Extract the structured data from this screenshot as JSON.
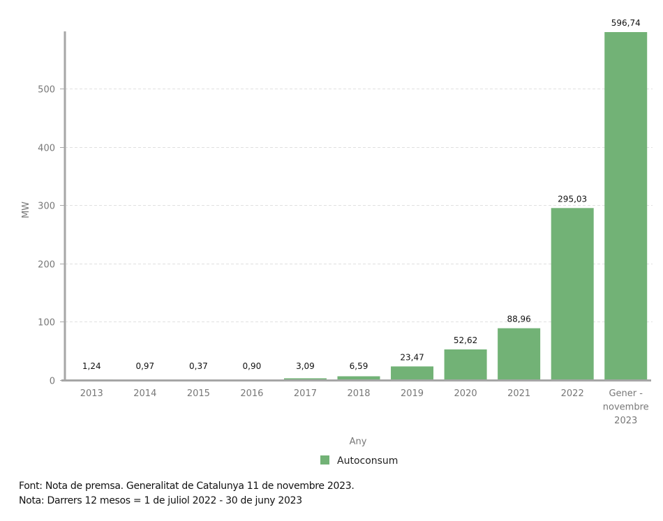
{
  "chart_data": {
    "type": "bar",
    "title": "",
    "xlabel": "Any",
    "ylabel": "MW",
    "ylim": [
      0,
      596.74
    ],
    "yticks": [
      0,
      100,
      200,
      300,
      400,
      500
    ],
    "grid": true,
    "legend_position": "bottom-center",
    "categories": [
      "2013",
      "2014",
      "2015",
      "2016",
      "2017",
      "2018",
      "2019",
      "2020",
      "2021",
      "2022",
      "Gener - novembre 2023"
    ],
    "category_lines": [
      [
        "2013"
      ],
      [
        "2014"
      ],
      [
        "2015"
      ],
      [
        "2016"
      ],
      [
        "2017"
      ],
      [
        "2018"
      ],
      [
        "2019"
      ],
      [
        "2020"
      ],
      [
        "2021"
      ],
      [
        "2022"
      ],
      [
        "Gener -",
        "novembre",
        "2023"
      ]
    ],
    "series": [
      {
        "name": "Autoconsum",
        "color": "#72b276",
        "values": [
          1.24,
          0.97,
          0.37,
          0.9,
          3.09,
          6.59,
          23.47,
          52.62,
          88.96,
          295.03,
          596.74
        ],
        "labels": [
          "1,24",
          "0,97",
          "0,37",
          "0,90",
          "3,09",
          "6,59",
          "23,47",
          "52,62",
          "88,96",
          "295,03",
          "596,74"
        ]
      }
    ]
  },
  "notes": {
    "source": "Font: Nota de premsa. Generalitat de Catalunya 11 de novembre 2023.",
    "note": "Nota: Darrers 12 mesos = 1 de juliol 2022 - 30 de juny 2023"
  }
}
